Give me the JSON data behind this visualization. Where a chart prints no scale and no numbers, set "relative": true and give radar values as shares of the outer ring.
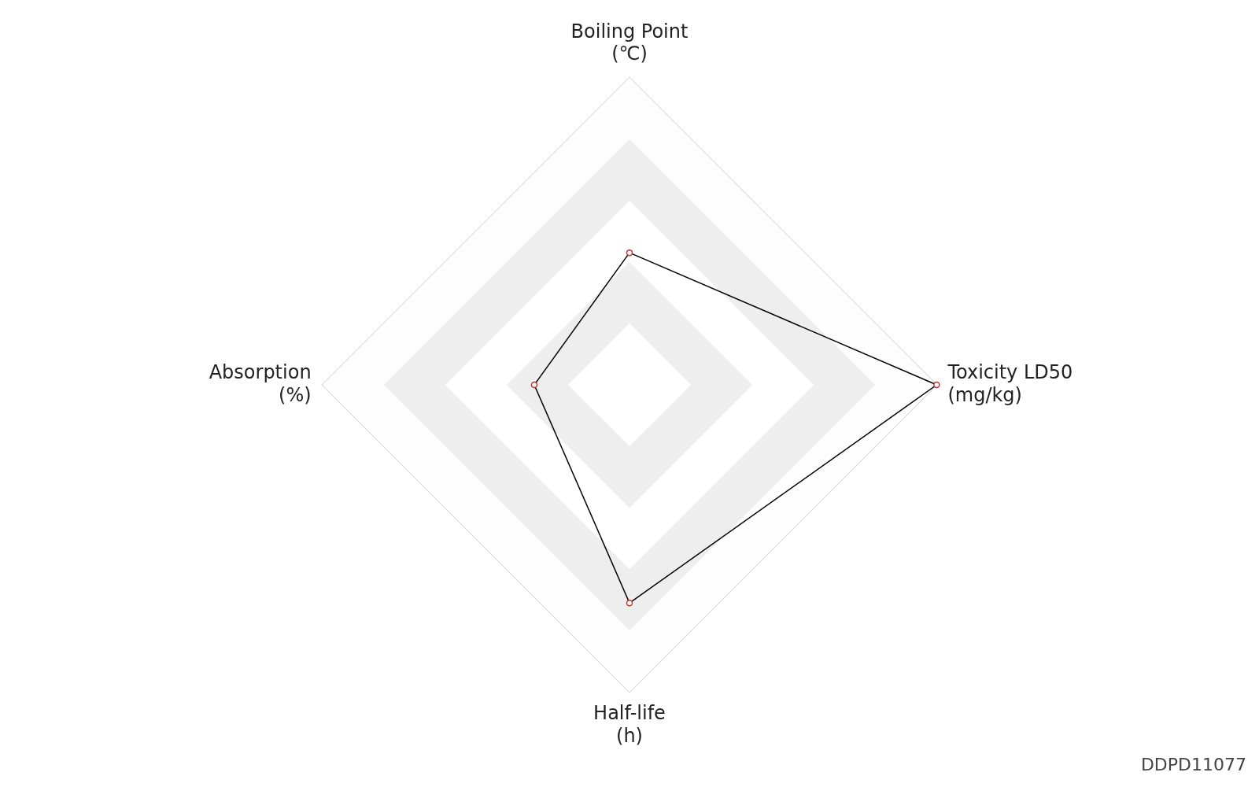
{
  "chart_data": {
    "type": "radar",
    "relative": true,
    "categories": [
      "Boiling Point\n(℃)",
      "Toxicity LD50\n(mg/kg)",
      "Half-life\n(h)",
      "Absorption\n(%)"
    ],
    "series": [
      {
        "color": "#000000",
        "values": [
          0.43,
          1.0,
          0.71,
          0.31
        ]
      }
    ],
    "marker": "circle",
    "legend": false,
    "annotations": [
      "DDPD11077"
    ]
  }
}
